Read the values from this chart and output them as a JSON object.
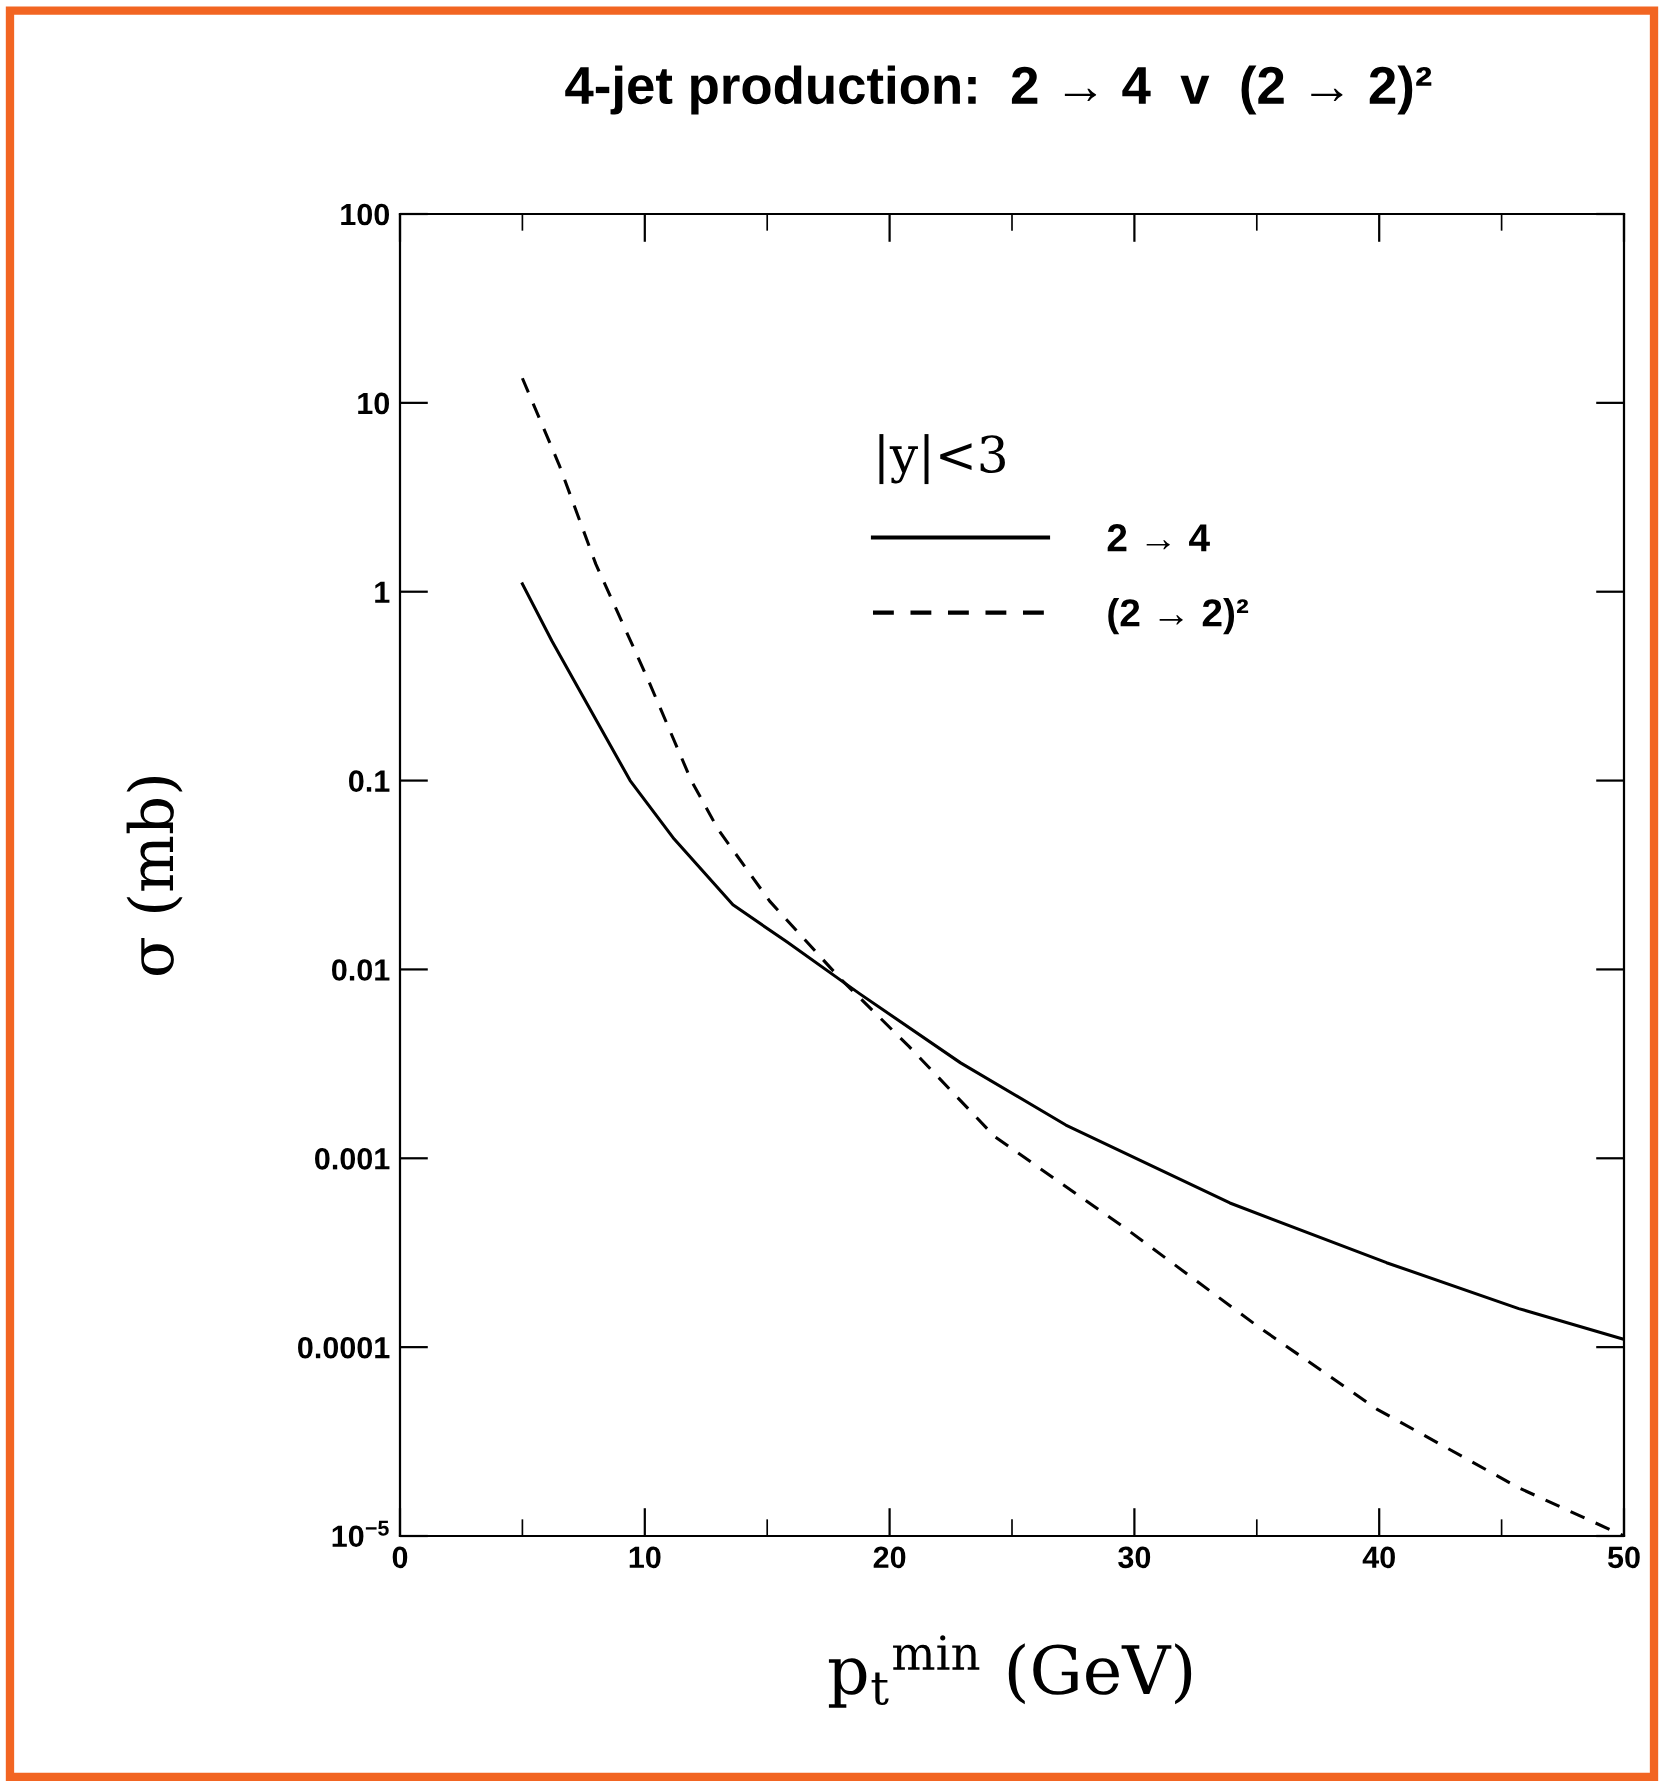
{
  "chart_data": {
    "type": "line",
    "title": "4-jet production:  2 → 4  v  (2 → 2)²",
    "xlabel": "p$_{t}$$^{min}$ (GeV)",
    "ylabel": "σ (mb)",
    "legend_title": "|y|<3",
    "legend": "top",
    "log": "y",
    "grid": false,
    "xlim": [
      0,
      50
    ],
    "xticks": [
      0,
      10,
      20,
      30,
      40,
      50
    ],
    "ylim": [
      1e-05,
      100
    ],
    "yticks": [
      {
        "value": 1e-05,
        "label": "10$^{−5}$"
      },
      0.0001,
      0.001,
      0.01,
      0.1,
      1,
      10,
      100
    ],
    "series": [
      {
        "name": "2 → 4",
        "color": "#000000",
        "line_style": "solid",
        "x": [
          5,
          6.2,
          7.4,
          9.4,
          11.2,
          13.6,
          15.8,
          18.8,
          22.9,
          27.2,
          33.9,
          40.3,
          45.7,
          50
        ],
        "values": [
          1.1,
          0.55,
          0.29,
          0.1,
          0.049,
          0.022,
          0.014,
          0.0074,
          0.0032,
          0.0015,
          0.00058,
          0.00028,
          0.00016,
          0.00011
        ]
      },
      {
        "name": "(2 → 2)²",
        "color": "#000000",
        "line_style": "dashed",
        "x": [
          5,
          6.5,
          8,
          10.1,
          11.9,
          13,
          15.1,
          18,
          20.8,
          24.3,
          29.7,
          35,
          39.9,
          45.7,
          50
        ],
        "values": [
          13.5,
          4.7,
          1.4,
          0.35,
          0.1,
          0.055,
          0.023,
          0.0089,
          0.0039,
          0.0013,
          0.00042,
          0.00013,
          4.7e-05,
          1.8e-05,
          1e-05
        ]
      }
    ]
  }
}
